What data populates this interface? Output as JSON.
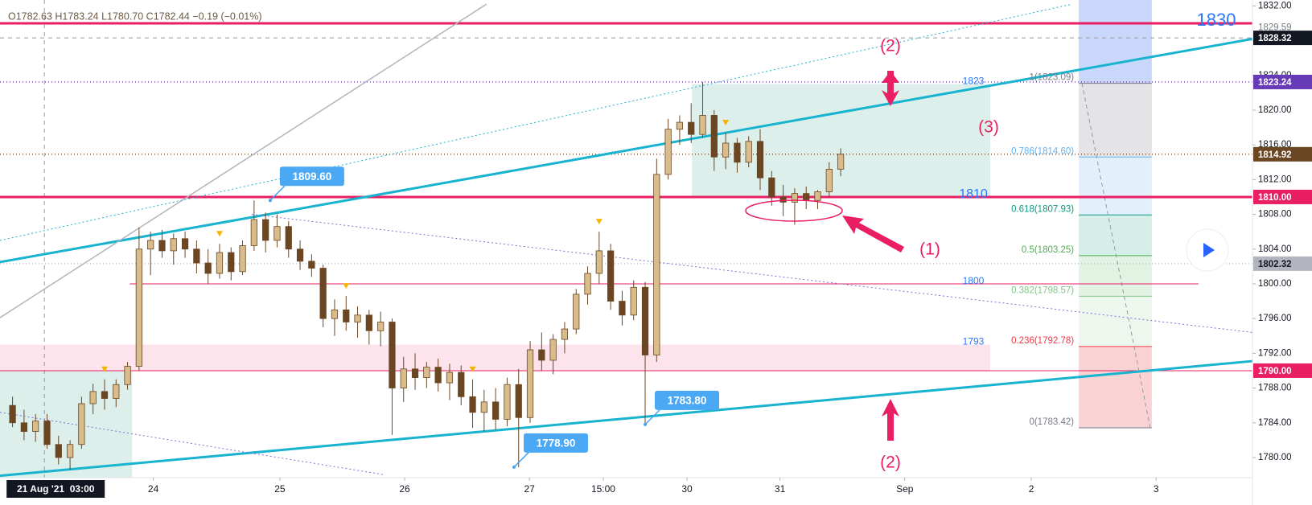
{
  "header": {
    "ohlc": "O1782.63 H1783.24 L1780.70 C1782.44 −0.19 (−0.01%)"
  },
  "chart_data": {
    "type": "candlestick",
    "open": [
      1786,
      1784,
      1783,
      1784.2,
      1781.5,
      1780,
      1781.5,
      1786.2,
      1787.6,
      1786.8,
      1788.4,
      1790.5,
      1804,
      1805,
      1803.8,
      1805.2,
      1804,
      1802.4,
      1801.2,
      1803.6,
      1801.4,
      1804.4,
      1807.4,
      1805,
      1806.6,
      1804,
      1802.6,
      1801.8,
      1796,
      1797,
      1795.6,
      1796.4,
      1794.6,
      1795.6,
      1788,
      1790.2,
      1789.2,
      1790.4,
      1788.6,
      1789.8,
      1787,
      1785.2,
      1786.4,
      1784.4,
      1788.4,
      1784.6,
      1792.4,
      1791.2,
      1793.6,
      1794.8,
      1798.8,
      1801.2,
      1803.8,
      1798,
      1796.4,
      1799.6,
      1791.8,
      1812.6,
      1817.8,
      1818.6,
      1817.2,
      1819.4,
      1814.6,
      1816.2,
      1814,
      1816.4,
      1812.2,
      1810,
      1809.4,
      1810.4,
      1809.6,
      1810.6,
      1813.2
    ],
    "high": [
      1787,
      1785.5,
      1785,
      1785,
      1782.5,
      1782,
      1787,
      1788.5,
      1789,
      1789,
      1791,
      1806.5,
      1806,
      1806.2,
      1805.8,
      1806,
      1805,
      1804,
      1804.6,
      1804.2,
      1805,
      1809.6,
      1808.2,
      1808,
      1807.2,
      1805,
      1803.4,
      1802.2,
      1798.2,
      1798.6,
      1797.4,
      1797,
      1796.8,
      1796,
      1791.6,
      1792,
      1791,
      1791.4,
      1790.8,
      1790.6,
      1789,
      1787.8,
      1788,
      1789.2,
      1790.2,
      1793.4,
      1794.4,
      1794.2,
      1795.6,
      1799.4,
      1802,
      1806,
      1804.6,
      1799.2,
      1800.4,
      1800.2,
      1814.4,
      1819,
      1819.4,
      1820.8,
      1823.24,
      1820,
      1817.4,
      1816.8,
      1817,
      1817.8,
      1813,
      1811.4,
      1811,
      1811.2,
      1810.8,
      1814,
      1815.6
    ],
    "low": [
      1783.5,
      1782,
      1781.8,
      1781,
      1779.2,
      1778.6,
      1781,
      1785,
      1785.5,
      1785.8,
      1787.8,
      1790,
      1801,
      1803,
      1802.2,
      1803,
      1801.2,
      1800,
      1800.6,
      1800.4,
      1801,
      1803.8,
      1803.6,
      1804.2,
      1803,
      1801.6,
      1800.8,
      1795,
      1794,
      1794.6,
      1793.8,
      1793,
      1792.8,
      1782.6,
      1786.4,
      1787.8,
      1788,
      1787.6,
      1786.6,
      1786,
      1783.4,
      1783,
      1783.2,
      1783.6,
      1778.9,
      1784,
      1790,
      1789.6,
      1792,
      1794.2,
      1797.6,
      1800,
      1797,
      1795.2,
      1795.8,
      1783.8,
      1791,
      1812,
      1816,
      1816.2,
      1816.8,
      1813,
      1813.2,
      1812.8,
      1813.4,
      1810.8,
      1809,
      1807.8,
      1806.8,
      1808.6,
      1808.6,
      1810,
      1812.4
    ],
    "close": [
      1784,
      1783,
      1784.2,
      1781.5,
      1780,
      1781.5,
      1786.2,
      1787.6,
      1786.8,
      1788.4,
      1790.5,
      1804,
      1805,
      1803.8,
      1805.2,
      1804,
      1802.4,
      1801.2,
      1803.6,
      1801.4,
      1804.4,
      1807.4,
      1805,
      1806.6,
      1804,
      1802.6,
      1801.8,
      1796,
      1797,
      1795.6,
      1796.4,
      1794.6,
      1795.6,
      1788,
      1790.2,
      1789.2,
      1790.4,
      1788.6,
      1789.8,
      1787,
      1785.2,
      1786.4,
      1784.4,
      1788.4,
      1784.6,
      1792.4,
      1791.2,
      1793.6,
      1794.8,
      1798.8,
      1801.2,
      1803.8,
      1798,
      1796.4,
      1799.6,
      1791.8,
      1812.6,
      1817.8,
      1818.6,
      1817.2,
      1819.4,
      1814.6,
      1816.2,
      1814,
      1816.4,
      1812.2,
      1810,
      1809.4,
      1810.4,
      1809.6,
      1810.6,
      1813.2,
      1814.92
    ],
    "up_color": "#d8bc8c",
    "down_color": "#6b4623",
    "xlim": [
      -1.09,
      107.8
    ],
    "xticks": [
      {
        "value": 12.24,
        "label": "24"
      },
      {
        "value": 23.24,
        "label": "25"
      },
      {
        "value": 34.09,
        "label": "26"
      },
      {
        "value": 44.94,
        "label": "27"
      },
      {
        "value": 51.36,
        "label": "15:00"
      },
      {
        "value": 58.64,
        "label": "30"
      },
      {
        "value": 66.72,
        "label": "31"
      },
      {
        "value": 77.57,
        "label": "Sep"
      },
      {
        "value": 88.57,
        "label": "2"
      },
      {
        "value": 99.42,
        "label": "3"
      }
    ],
    "ylim": [
      1777.68,
      1832.68
    ],
    "yticks": [
      {
        "value": 1780,
        "label": "1780.00"
      },
      {
        "value": 1784,
        "label": "1784.00"
      },
      {
        "value": 1788,
        "label": "1788.00"
      },
      {
        "value": 1792,
        "label": "1792.00"
      },
      {
        "value": 1796,
        "label": "1796.00"
      },
      {
        "value": 1800,
        "label": "1800.00"
      },
      {
        "value": 1804,
        "label": "1804.00"
      },
      {
        "value": 1808,
        "label": "1808.00"
      },
      {
        "value": 1812,
        "label": "1812.00"
      },
      {
        "value": 1816,
        "label": "1816.00"
      },
      {
        "value": 1820,
        "label": "1820.00"
      },
      {
        "value": 1824,
        "label": "1824.00"
      },
      {
        "value": 1828,
        "label": "1828.00"
      },
      {
        "value": 1832,
        "label": "1832.00"
      }
    ],
    "price_labels": [
      {
        "value": 1829.59,
        "bg": "#ffffff",
        "fg": "#787b86",
        "dotted": false
      },
      {
        "value": 1823.24,
        "bg": "#673ab7",
        "fg": "#ffffff",
        "dotted": true
      },
      {
        "value": 1814.92,
        "bg": "#6b4623",
        "fg": "#ffffff",
        "dotted": true
      },
      {
        "value": {
          "value": 1810,
          "label": "1810.00"
        },
        "bg": "#e91e63",
        "fg": "#ffffff",
        "dotted": false
      },
      {
        "value": 1802.32,
        "bg": "#b2b5be",
        "fg": "#131722",
        "dotted": true
      },
      {
        "value": {
          "value": 1790,
          "label": "1790.00"
        },
        "bg": "#e91e63",
        "fg": "#ffffff",
        "dotted": false
      }
    ],
    "crosshair": {
      "x": 2.77,
      "x_label": "21 Aug '21  03:00",
      "y": 1828.32
    },
    "zones": [
      {
        "y": [
          1810,
          1823
        ],
        "x": [
          59.07,
          85
        ],
        "color": "#dcefeb"
      },
      {
        "y": [
          1790,
          1793
        ],
        "x": [
          -1.09,
          85
        ],
        "color": "#fde4ec"
      },
      {
        "y": [
          1777.68,
          1790
        ],
        "x": [
          -1.09,
          10.4
        ],
        "color": "#dcefeb"
      }
    ],
    "hlines": [
      {
        "value": 1830,
        "x": [
          -1.09,
          107.8
        ],
        "color": "#e91e63",
        "width": 3
      },
      {
        "value": 1810,
        "x": [
          -1.09,
          107.8
        ],
        "color": "#e91e63",
        "width": 3
      },
      {
        "value": 1800,
        "x": [
          10.2,
          103.1
        ],
        "color": "#e91e63",
        "width": 1
      },
      {
        "value": 1790,
        "x": [
          -1.09,
          107.8
        ],
        "color": "#e91e63",
        "width": 1
      }
    ],
    "level_texts": [
      1830,
      1823,
      1810,
      1800,
      1793
    ],
    "trendlines": [
      {
        "x": [
          -1.09,
          107.8
        ],
        "y": [
          1802.5,
          1828.2
        ],
        "color": "#17b3cf",
        "width": 3,
        "dash": false
      },
      {
        "x": [
          -1.09,
          107.8
        ],
        "y": [
          1777.9,
          1791.1
        ],
        "color": "#17b3cf",
        "width": 3,
        "dash": false
      },
      {
        "x": [
          -1.09,
          41.2
        ],
        "y": [
          1796.1,
          1832.2
        ],
        "color": "#b2b5be",
        "width": 1.5,
        "dash": false
      },
      {
        "x": [
          -1.09,
          92.1
        ],
        "y": [
          1805,
          1832.2
        ],
        "color": "#17b3cf",
        "width": 1,
        "dash": true
      },
      {
        "x": [
          20.8,
          107.8
        ],
        "y": [
          1808,
          1794.4
        ],
        "color": "#7e6fd6",
        "width": 1,
        "dash": true
      },
      {
        "x": [
          -1.09,
          32.4
        ],
        "y": [
          1785.2,
          1778
        ],
        "color": "#7e6fd6",
        "width": 1,
        "dash": true
      }
    ],
    "fib": {
      "x": [
        92.7,
        99.05
      ],
      "top_band_color": "#c9d8fa",
      "levels": [
        {
          "value": 1823.09,
          "label": "1(1823.09)",
          "color": "#787b86",
          "band": "#e4e4e6"
        },
        {
          "value": 1814.6,
          "label": "0.786(1814.60)",
          "color": "#64b5f6",
          "band": "#e3f0fc"
        },
        {
          "value": 1807.93,
          "label": "0.618(1807.93)",
          "color": "#089981",
          "band": "#d5eee8"
        },
        {
          "value": 1803.25,
          "label": "0.5(1803.25)",
          "color": "#4caf50",
          "band": "#e2f2e3"
        },
        {
          "value": 1798.57,
          "label": "0.382(1798.57)",
          "color": "#81c784",
          "band": "#eef7ee"
        },
        {
          "value": 1792.78,
          "label": "0.236(1792.78)",
          "color": "#f23645",
          "band": "#f9d3d3"
        },
        {
          "value": 1783.42,
          "label": "0(1783.42)",
          "color": "#787b86",
          "band": null
        }
      ]
    },
    "callouts": [
      {
        "value": 1809.6,
        "label": "1809.60",
        "x": 22.4
      },
      {
        "value": 1783.8,
        "label": "1783.80",
        "x": 55
      },
      {
        "value": 1778.9,
        "label": "1778.90",
        "x": 43.6
      }
    ],
    "signal_bars": [
      8,
      18,
      29,
      40,
      51,
      62
    ],
    "annotations": [
      "(2)",
      "(2)",
      "(3)",
      "(1)"
    ]
  }
}
